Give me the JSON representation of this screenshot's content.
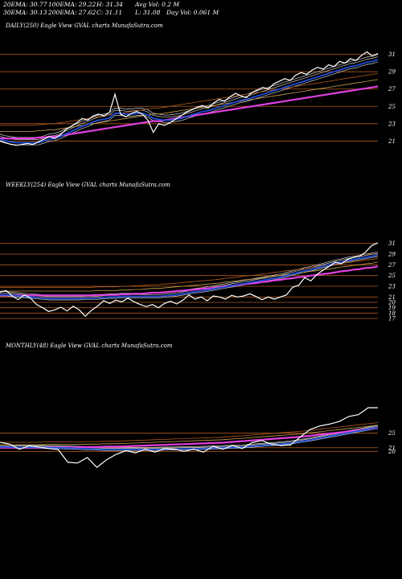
{
  "header": {
    "ema20": "20EMA: 30.77",
    "ema100": "100EMA: 29.22",
    "high": "H: 31.34",
    "avgvol": "Avg Vol: 0.2  M",
    "ema30": "30EMA: 30.13",
    "ema200": "200EMA: 27.62",
    "close": "C: 31.11",
    "low": "L: 31.08",
    "dayvol": "Day Vol: 0.061 M"
  },
  "colors": {
    "price": "#ffffff",
    "ema_fast": "#1f4ed8",
    "ema_slow": "#e040e0",
    "ema_thin": "#d0d0d0",
    "ema_mid": "#c8a050",
    "ema_long": "#b05a1e",
    "level_line": "#b05a1e"
  },
  "chart_data": [
    {
      "type": "line",
      "panel": "daily",
      "label": "DAILY(250) Eagle  View  GVAL  charts MunafaSutra.com",
      "ticks": [
        31,
        29,
        27,
        25,
        23,
        21
      ],
      "ylim": [
        20.1,
        31.9
      ],
      "level_lines": [
        31,
        29,
        27,
        25,
        23,
        21
      ],
      "price": [
        21.0,
        20.8,
        20.6,
        20.5,
        20.6,
        20.7,
        20.6,
        20.9,
        21.2,
        21.5,
        21.3,
        21.7,
        22.3,
        22.7,
        23.1,
        23.6,
        23.4,
        23.9,
        24.1,
        23.9,
        24.3,
        26.4,
        24.1,
        23.8,
        24.2,
        24.4,
        24.1,
        23.4,
        22.0,
        23.0,
        22.8,
        23.1,
        23.5,
        23.9,
        24.3,
        24.6,
        24.9,
        25.1,
        24.8,
        25.4,
        25.8,
        25.6,
        26.1,
        26.5,
        26.2,
        26.0,
        26.6,
        26.9,
        27.2,
        27.0,
        27.6,
        27.9,
        28.2,
        28.0,
        28.6,
        28.9,
        28.7,
        29.2,
        29.5,
        29.3,
        29.8,
        29.6,
        30.2,
        30.0,
        30.5,
        30.3,
        30.9,
        31.3,
        30.8,
        31.1
      ],
      "ema_fast": [
        21.2,
        21.0,
        20.9,
        20.8,
        20.8,
        20.8,
        20.8,
        20.8,
        21.0,
        21.2,
        21.3,
        21.5,
        21.8,
        22.1,
        22.4,
        22.7,
        22.9,
        23.2,
        23.4,
        23.5,
        23.7,
        24.2,
        24.2,
        24.1,
        24.1,
        24.2,
        24.2,
        24.0,
        23.6,
        23.5,
        23.4,
        23.4,
        23.5,
        23.6,
        23.8,
        24.0,
        24.2,
        24.4,
        24.5,
        24.7,
        24.9,
        25.1,
        25.3,
        25.5,
        25.7,
        25.8,
        26.0,
        26.2,
        26.4,
        26.6,
        26.8,
        27.0,
        27.2,
        27.4,
        27.6,
        27.8,
        28.0,
        28.2,
        28.4,
        28.6,
        28.8,
        29.0,
        29.2,
        29.4,
        29.6,
        29.7,
        29.9,
        30.1,
        30.2,
        30.4
      ],
      "ema_slow": [
        21.3,
        21.3,
        21.3,
        21.3,
        21.3,
        21.3,
        21.3,
        21.4,
        21.4,
        21.5,
        21.5,
        21.6,
        21.7,
        21.8,
        21.9,
        22.0,
        22.1,
        22.2,
        22.3,
        22.4,
        22.5,
        22.6,
        22.7,
        22.8,
        22.9,
        23.0,
        23.1,
        23.2,
        23.3,
        23.3,
        23.4,
        23.5,
        23.6,
        23.7,
        23.8,
        23.9,
        24.0,
        24.1,
        24.2,
        24.3,
        24.4,
        24.5,
        24.6,
        24.7,
        24.8,
        24.9,
        25.0,
        25.1,
        25.2,
        25.3,
        25.4,
        25.5,
        25.6,
        25.7,
        25.8,
        25.9,
        26.0,
        26.1,
        26.2,
        26.3,
        26.4,
        26.5,
        26.6,
        26.7,
        26.8,
        26.9,
        27.0,
        27.1,
        27.2,
        27.3
      ]
    },
    {
      "type": "line",
      "panel": "weekly",
      "label": "WEEKLY(254) Eagle  View  GVAL  charts MunafaSutra.com",
      "ticks": [
        31,
        29,
        27,
        25,
        23,
        21,
        20,
        19,
        18,
        17
      ],
      "ylim": [
        16.4,
        32.0
      ],
      "level_lines": [
        31,
        29,
        27,
        25,
        23,
        21,
        20,
        19,
        18,
        17
      ],
      "price": [
        21.9,
        22.2,
        21.2,
        20.5,
        21.4,
        20.8,
        19.6,
        19.0,
        18.3,
        18.6,
        19.1,
        18.4,
        19.3,
        18.6,
        17.4,
        18.5,
        19.3,
        20.3,
        19.8,
        20.4,
        20.1,
        20.8,
        20.1,
        19.6,
        19.2,
        19.6,
        19.0,
        19.8,
        20.2,
        19.7,
        20.4,
        21.4,
        20.6,
        21.0,
        20.3,
        21.2,
        21.0,
        20.6,
        21.3,
        21.0,
        21.2,
        21.6,
        21.1,
        20.5,
        21.0,
        20.6,
        21.0,
        21.4,
        22.8,
        23.2,
        24.6,
        24.0,
        25.2,
        26.0,
        26.7,
        27.5,
        27.2,
        28.0,
        28.4,
        28.6,
        29.4,
        30.6,
        31.1
      ],
      "ema_fast": [
        21.4,
        21.4,
        21.3,
        21.2,
        21.1,
        21.0,
        20.9,
        20.8,
        20.7,
        20.7,
        20.7,
        20.7,
        20.7,
        20.7,
        20.8,
        20.8,
        20.8,
        20.9,
        21.0,
        21.0,
        21.1,
        21.1,
        21.1,
        21.1,
        21.1,
        21.1,
        21.1,
        21.2,
        21.3,
        21.4,
        21.6,
        21.8,
        22.0,
        22.1,
        22.3,
        22.5,
        22.7,
        22.9,
        23.1,
        23.3,
        23.5,
        23.7,
        23.9,
        24.1,
        24.3,
        24.5,
        24.7,
        25.0,
        25.3,
        25.6,
        25.9,
        26.1,
        26.4,
        26.7,
        27.0,
        27.3,
        27.5,
        27.8,
        28.0,
        28.2,
        28.4,
        28.6,
        28.8
      ],
      "ema_slow": [
        21.3,
        21.3,
        21.3,
        21.3,
        21.3,
        21.3,
        21.3,
        21.3,
        21.3,
        21.3,
        21.3,
        21.3,
        21.3,
        21.3,
        21.3,
        21.3,
        21.4,
        21.4,
        21.4,
        21.4,
        21.5,
        21.5,
        21.6,
        21.6,
        21.7,
        21.8,
        21.8,
        21.9,
        22.0,
        22.1,
        22.2,
        22.3,
        22.4,
        22.5,
        22.6,
        22.7,
        22.8,
        23.0,
        23.1,
        23.2,
        23.4,
        23.5,
        23.6,
        23.8,
        23.9,
        24.1,
        24.2,
        24.4,
        24.5,
        24.7,
        24.8,
        25.0,
        25.1,
        25.3,
        25.4,
        25.6,
        25.8,
        25.9,
        26.1,
        26.2,
        26.4,
        26.5,
        26.7
      ]
    },
    {
      "type": "line",
      "panel": "monthly",
      "label": "MONTHLY(48) Eagle  View  GVAL  charts MunafaSutra.com",
      "ticks": [
        25,
        21,
        20
      ],
      "ylim": [
        11.0,
        34.0
      ],
      "level_lines": [
        25,
        21,
        20
      ],
      "price": [
        22.5,
        22.0,
        20.6,
        21.5,
        21.2,
        20.8,
        20.5,
        17.0,
        16.8,
        18.3,
        15.6,
        17.7,
        19.2,
        20.2,
        19.6,
        20.6,
        19.8,
        20.8,
        20.6,
        20.0,
        20.6,
        19.8,
        21.4,
        20.6,
        21.6,
        20.8,
        22.4,
        23.0,
        22.0,
        21.6,
        21.8,
        24.0,
        26.0,
        27.0,
        27.5,
        28.2,
        29.6,
        30.1,
        32.0,
        32.0
      ],
      "ema_fast": [
        21.2,
        21.2,
        21.1,
        21.1,
        21.1,
        21.0,
        21.0,
        20.9,
        20.8,
        20.7,
        20.6,
        20.5,
        20.5,
        20.5,
        20.5,
        20.5,
        20.5,
        20.6,
        20.6,
        20.7,
        20.7,
        20.8,
        20.9,
        21.0,
        21.1,
        21.2,
        21.4,
        21.6,
        21.8,
        22.0,
        22.3,
        22.7,
        23.1,
        23.6,
        24.1,
        24.6,
        25.1,
        25.6,
        26.1,
        26.5
      ],
      "ema_slow": [
        21.0,
        21.0,
        21.0,
        21.0,
        21.0,
        21.1,
        21.1,
        21.1,
        21.1,
        21.2,
        21.2,
        21.3,
        21.3,
        21.4,
        21.5,
        21.6,
        21.7,
        21.8,
        21.9,
        22.0,
        22.1,
        22.2,
        22.3,
        22.4,
        22.6,
        22.8,
        23.0,
        23.2,
        23.4,
        23.6,
        23.8,
        24.0,
        24.3,
        24.6,
        24.9,
        25.2,
        25.5,
        25.8,
        26.1,
        26.4
      ]
    }
  ]
}
